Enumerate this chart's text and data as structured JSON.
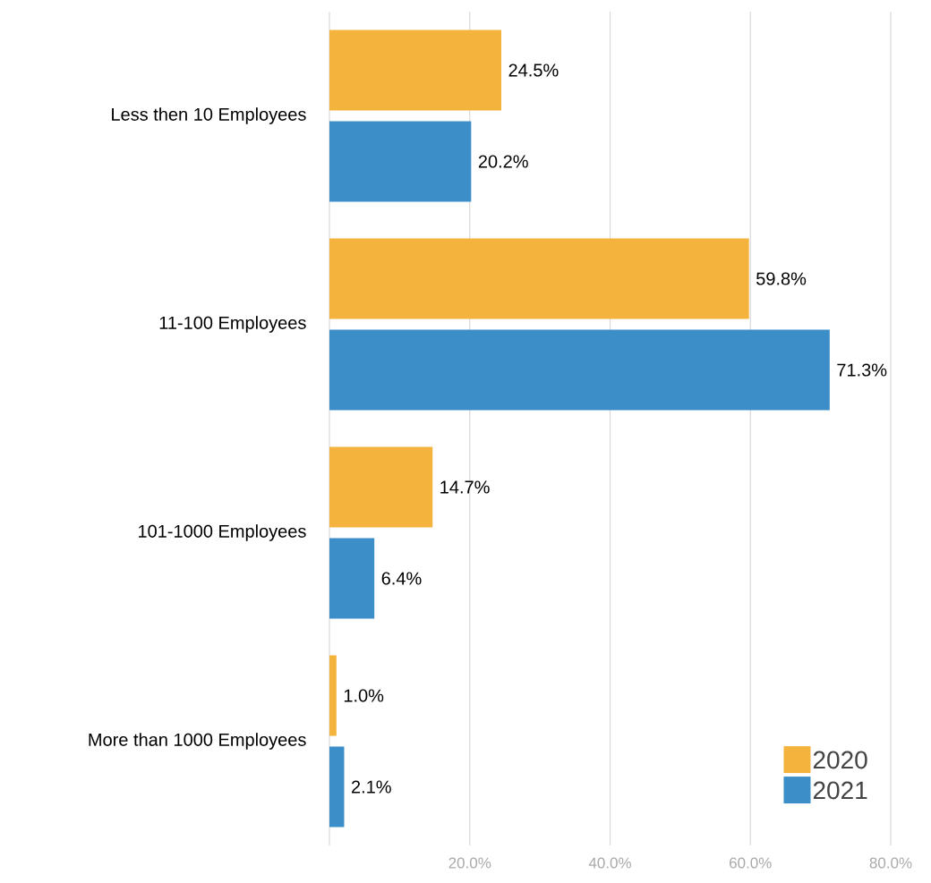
{
  "chart_data": {
    "type": "bar",
    "orientation": "horizontal",
    "categories": [
      "Less then 10 Employees",
      "11-100 Employees",
      "101-1000 Employees",
      "More than 1000 Employees"
    ],
    "series": [
      {
        "name": "2020",
        "color": "#f3b33d",
        "values": [
          24.5,
          59.8,
          14.7,
          1.0
        ],
        "value_labels": [
          "24.5%",
          "59.8%",
          "14.7%",
          "1.0%"
        ]
      },
      {
        "name": "2021",
        "color": "#3b8ec7",
        "values": [
          20.2,
          71.3,
          6.4,
          2.1
        ],
        "value_labels": [
          "20.2%",
          "71.3%",
          "6.4%",
          "2.1%"
        ]
      }
    ],
    "xlim": [
      0,
      80
    ],
    "xticks": [
      {
        "value": 0,
        "label": null
      },
      {
        "value": 20,
        "label": "20.0%"
      },
      {
        "value": 40,
        "label": "40.0%"
      },
      {
        "value": 60,
        "label": "60.0%"
      },
      {
        "value": 80,
        "label": "80.0%"
      }
    ],
    "grid": "x",
    "legend": "bottom right"
  }
}
